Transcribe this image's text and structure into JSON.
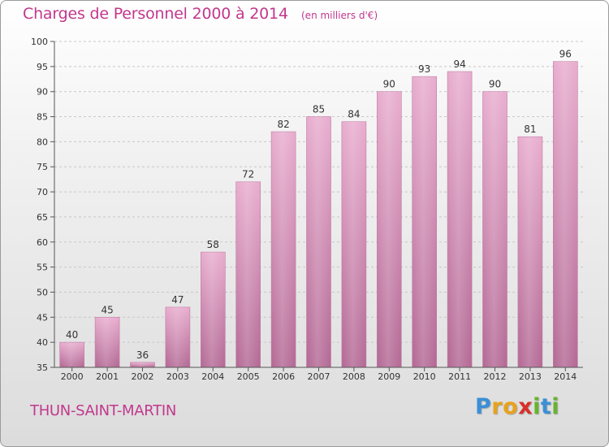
{
  "chart_data": {
    "type": "bar",
    "title": "Charges de Personnel 2000 à 2014",
    "subtitle": "(en milliers d'€)",
    "categories": [
      "2000",
      "2001",
      "2002",
      "2003",
      "2004",
      "2005",
      "2006",
      "2007",
      "2008",
      "2009",
      "2010",
      "2011",
      "2012",
      "2013",
      "2014"
    ],
    "values": [
      40,
      45,
      36,
      47,
      58,
      72,
      82,
      85,
      84,
      90,
      93,
      94,
      90,
      81,
      96
    ],
    "ylim": [
      35,
      100
    ],
    "yticks": [
      35,
      40,
      45,
      50,
      55,
      60,
      65,
      70,
      75,
      80,
      85,
      90,
      95,
      100
    ],
    "grid": true,
    "bar_color": "#d98bb6"
  },
  "footer": {
    "commune": "THUN-SAINT-MARTIN",
    "logo_letters": [
      "P",
      "r",
      "o",
      "x",
      "i",
      "t",
      "i"
    ],
    "logo_colors": [
      "#3a8fd6",
      "#e8a21b",
      "#e8a21b",
      "#d9302a",
      "#67b32e",
      "#3a8fd6",
      "#67b32e"
    ]
  }
}
